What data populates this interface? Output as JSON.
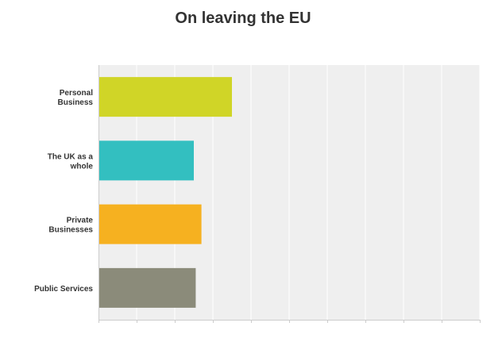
{
  "chart_data": {
    "type": "bar",
    "orientation": "horizontal",
    "title": "On leaving the EU",
    "categories": [
      [
        "Personal",
        "Business"
      ],
      [
        "The UK as a",
        "whole"
      ],
      [
        "Private",
        "Businesses"
      ],
      [
        "Public Services"
      ]
    ],
    "values": [
      3.5,
      2.5,
      2.7,
      2.55
    ],
    "xlim": [
      0,
      10
    ],
    "grid": true,
    "colors": [
      "#d0d527",
      "#33bfc0",
      "#f6b120",
      "#8b8b7a"
    ],
    "plot_background": "#efefef",
    "gridline_color": "#ffffff",
    "axis_color": "#cccccc"
  }
}
